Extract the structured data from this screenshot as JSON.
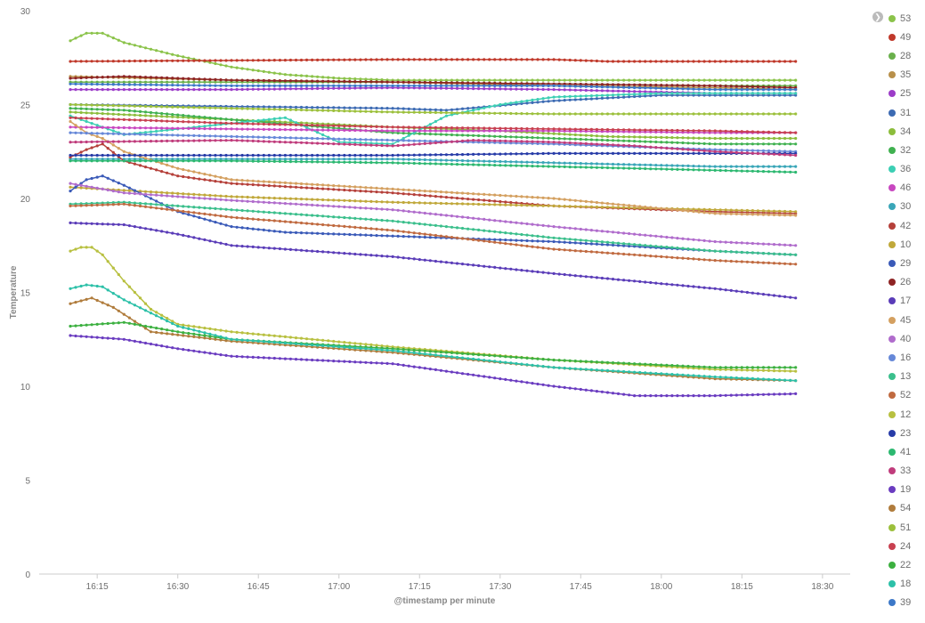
{
  "chart_data": {
    "type": "line",
    "xlabel": "@timestamp per minute",
    "ylabel": "Temperature",
    "ylim": [
      0,
      30
    ],
    "y_ticks": [
      "0",
      "5",
      "10",
      "15",
      "20",
      "25",
      "30"
    ],
    "x_ticks": [
      "16:15",
      "16:30",
      "16:45",
      "17:00",
      "17:15",
      "17:30",
      "17:45",
      "18:00",
      "18:15",
      "18:30"
    ],
    "x_start": "16:10",
    "x_range_minutes": [
      0,
      144
    ],
    "grid": false,
    "legend": "right",
    "series": [
      {
        "name": "53",
        "color": "#8bc34a",
        "points": [
          [
            0,
            28.4
          ],
          [
            3,
            28.8
          ],
          [
            6,
            28.8
          ],
          [
            10,
            28.3
          ],
          [
            20,
            27.6
          ],
          [
            30,
            27.0
          ],
          [
            40,
            26.6
          ],
          [
            50,
            26.4
          ],
          [
            60,
            26.3
          ],
          [
            80,
            26.3
          ],
          [
            100,
            26.3
          ],
          [
            120,
            26.3
          ],
          [
            135,
            26.3
          ]
        ]
      },
      {
        "name": "49",
        "color": "#c0392b",
        "points": [
          [
            0,
            27.3
          ],
          [
            30,
            27.35
          ],
          [
            60,
            27.4
          ],
          [
            90,
            27.4
          ],
          [
            100,
            27.3
          ],
          [
            120,
            27.3
          ],
          [
            135,
            27.3
          ]
        ]
      },
      {
        "name": "28",
        "color": "#6ab04c",
        "points": [
          [
            0,
            26.2
          ],
          [
            30,
            26.2
          ],
          [
            60,
            26.2
          ],
          [
            90,
            26.1
          ],
          [
            120,
            26.0
          ],
          [
            135,
            26.0
          ]
        ]
      },
      {
        "name": "35",
        "color": "#b8904a",
        "points": [
          [
            0,
            26.5
          ],
          [
            30,
            26.3
          ],
          [
            60,
            26.2
          ],
          [
            90,
            26.0
          ],
          [
            120,
            25.9
          ],
          [
            135,
            25.8
          ]
        ]
      },
      {
        "name": "25",
        "color": "#9c3cc8",
        "points": [
          [
            0,
            25.8
          ],
          [
            30,
            25.8
          ],
          [
            60,
            25.9
          ],
          [
            90,
            25.8
          ],
          [
            120,
            25.6
          ],
          [
            135,
            25.6
          ]
        ]
      },
      {
        "name": "31",
        "color": "#3d6bb3",
        "points": [
          [
            0,
            25.0
          ],
          [
            30,
            24.9
          ],
          [
            60,
            24.8
          ],
          [
            70,
            24.7
          ],
          [
            90,
            25.2
          ],
          [
            110,
            25.5
          ],
          [
            135,
            25.5
          ]
        ]
      },
      {
        "name": "34",
        "color": "#8cbd3c",
        "points": [
          [
            0,
            24.6
          ],
          [
            30,
            24.2
          ],
          [
            60,
            23.8
          ],
          [
            80,
            23.6
          ],
          [
            100,
            23.3
          ],
          [
            120,
            23.2
          ],
          [
            135,
            23.2
          ]
        ]
      },
      {
        "name": "32",
        "color": "#40b150",
        "points": [
          [
            0,
            24.8
          ],
          [
            10,
            24.7
          ],
          [
            30,
            24.2
          ],
          [
            60,
            23.5
          ],
          [
            90,
            23.2
          ],
          [
            120,
            22.9
          ],
          [
            135,
            22.9
          ]
        ]
      },
      {
        "name": "36",
        "color": "#3ccfb4",
        "points": [
          [
            0,
            24.4
          ],
          [
            10,
            23.4
          ],
          [
            20,
            23.7
          ],
          [
            30,
            24.0
          ],
          [
            40,
            24.3
          ],
          [
            50,
            23.0
          ],
          [
            60,
            22.9
          ],
          [
            70,
            24.4
          ],
          [
            80,
            25.0
          ],
          [
            90,
            25.4
          ],
          [
            110,
            25.6
          ],
          [
            135,
            25.6
          ]
        ]
      },
      {
        "name": "46",
        "color": "#c847c0",
        "points": [
          [
            0,
            23.8
          ],
          [
            30,
            23.7
          ],
          [
            60,
            23.6
          ],
          [
            90,
            23.6
          ],
          [
            120,
            23.5
          ],
          [
            135,
            23.5
          ]
        ]
      },
      {
        "name": "30",
        "color": "#3aa6b8",
        "points": [
          [
            0,
            22.1
          ],
          [
            30,
            22.1
          ],
          [
            60,
            22.1
          ],
          [
            90,
            21.9
          ],
          [
            120,
            21.7
          ],
          [
            135,
            21.7
          ]
        ]
      },
      {
        "name": "42",
        "color": "#b5403a",
        "points": [
          [
            0,
            22.2
          ],
          [
            3,
            22.6
          ],
          [
            6,
            22.9
          ],
          [
            10,
            22.0
          ],
          [
            20,
            21.2
          ],
          [
            30,
            20.8
          ],
          [
            60,
            20.3
          ],
          [
            90,
            19.6
          ],
          [
            120,
            19.3
          ],
          [
            135,
            19.2
          ]
        ]
      },
      {
        "name": "10",
        "color": "#c0a83a",
        "points": [
          [
            0,
            20.6
          ],
          [
            30,
            20.1
          ],
          [
            60,
            19.8
          ],
          [
            90,
            19.6
          ],
          [
            120,
            19.4
          ],
          [
            135,
            19.3
          ]
        ]
      },
      {
        "name": "29",
        "color": "#3a5ab8",
        "points": [
          [
            0,
            20.4
          ],
          [
            3,
            21.0
          ],
          [
            6,
            21.2
          ],
          [
            10,
            20.7
          ],
          [
            20,
            19.3
          ],
          [
            30,
            18.5
          ],
          [
            40,
            18.2
          ],
          [
            60,
            18.0
          ],
          [
            90,
            17.7
          ],
          [
            120,
            17.2
          ],
          [
            135,
            17.0
          ]
        ]
      },
      {
        "name": "26",
        "color": "#8e2424",
        "points": [
          [
            0,
            26.4
          ],
          [
            10,
            26.5
          ],
          [
            30,
            26.3
          ],
          [
            60,
            26.2
          ],
          [
            90,
            26.1
          ],
          [
            120,
            26.0
          ],
          [
            135,
            25.9
          ]
        ]
      },
      {
        "name": "17",
        "color": "#5a3cb8",
        "points": [
          [
            0,
            18.7
          ],
          [
            10,
            18.6
          ],
          [
            20,
            18.1
          ],
          [
            30,
            17.5
          ],
          [
            60,
            16.9
          ],
          [
            90,
            16.0
          ],
          [
            120,
            15.2
          ],
          [
            135,
            14.7
          ]
        ]
      },
      {
        "name": "45",
        "color": "#d4a060",
        "points": [
          [
            0,
            24.1
          ],
          [
            3,
            23.5
          ],
          [
            6,
            23.2
          ],
          [
            10,
            22.5
          ],
          [
            20,
            21.6
          ],
          [
            30,
            21.0
          ],
          [
            60,
            20.5
          ],
          [
            90,
            20.0
          ],
          [
            120,
            19.2
          ],
          [
            135,
            19.1
          ]
        ]
      },
      {
        "name": "40",
        "color": "#b06ccc",
        "points": [
          [
            0,
            20.8
          ],
          [
            10,
            20.3
          ],
          [
            30,
            19.9
          ],
          [
            60,
            19.4
          ],
          [
            90,
            18.5
          ],
          [
            120,
            17.7
          ],
          [
            135,
            17.5
          ]
        ]
      },
      {
        "name": "16",
        "color": "#6688d8",
        "points": [
          [
            0,
            23.5
          ],
          [
            30,
            23.3
          ],
          [
            60,
            23.1
          ],
          [
            90,
            22.9
          ],
          [
            120,
            22.6
          ],
          [
            135,
            22.5
          ]
        ]
      },
      {
        "name": "13",
        "color": "#3bbf8c",
        "points": [
          [
            0,
            19.7
          ],
          [
            10,
            19.8
          ],
          [
            30,
            19.4
          ],
          [
            60,
            18.8
          ],
          [
            90,
            17.9
          ],
          [
            120,
            17.2
          ],
          [
            135,
            17.0
          ]
        ]
      },
      {
        "name": "52",
        "color": "#c06a40",
        "points": [
          [
            0,
            19.6
          ],
          [
            10,
            19.7
          ],
          [
            30,
            19.0
          ],
          [
            60,
            18.3
          ],
          [
            90,
            17.3
          ],
          [
            120,
            16.7
          ],
          [
            135,
            16.5
          ]
        ]
      },
      {
        "name": "12",
        "color": "#b8c040",
        "points": [
          [
            0,
            17.2
          ],
          [
            2,
            17.4
          ],
          [
            4,
            17.4
          ],
          [
            6,
            17.0
          ],
          [
            10,
            15.6
          ],
          [
            15,
            14.1
          ],
          [
            20,
            13.3
          ],
          [
            30,
            12.9
          ],
          [
            60,
            12.1
          ],
          [
            90,
            11.4
          ],
          [
            120,
            10.9
          ],
          [
            135,
            10.8
          ]
        ]
      },
      {
        "name": "23",
        "color": "#283ca8",
        "points": [
          [
            0,
            22.3
          ],
          [
            30,
            22.3
          ],
          [
            60,
            22.3
          ],
          [
            90,
            22.4
          ],
          [
            120,
            22.4
          ],
          [
            135,
            22.4
          ]
        ]
      },
      {
        "name": "41",
        "color": "#2cb870",
        "points": [
          [
            0,
            22.0
          ],
          [
            30,
            22.0
          ],
          [
            60,
            21.9
          ],
          [
            90,
            21.7
          ],
          [
            120,
            21.5
          ],
          [
            135,
            21.4
          ]
        ]
      },
      {
        "name": "33",
        "color": "#c03c7c",
        "points": [
          [
            0,
            23.0
          ],
          [
            30,
            23.1
          ],
          [
            60,
            22.8
          ],
          [
            75,
            23.1
          ],
          [
            90,
            23.0
          ],
          [
            105,
            22.8
          ],
          [
            120,
            22.5
          ],
          [
            135,
            22.3
          ]
        ]
      },
      {
        "name": "19",
        "color": "#6a3cc0",
        "points": [
          [
            0,
            12.7
          ],
          [
            10,
            12.5
          ],
          [
            20,
            12.0
          ],
          [
            30,
            11.6
          ],
          [
            60,
            11.2
          ],
          [
            90,
            10.0
          ],
          [
            105,
            9.5
          ],
          [
            120,
            9.5
          ],
          [
            135,
            9.6
          ]
        ]
      },
      {
        "name": "54",
        "color": "#b07c3c",
        "points": [
          [
            0,
            14.4
          ],
          [
            4,
            14.7
          ],
          [
            8,
            14.2
          ],
          [
            15,
            12.9
          ],
          [
            30,
            12.4
          ],
          [
            60,
            11.8
          ],
          [
            90,
            11.0
          ],
          [
            120,
            10.4
          ],
          [
            135,
            10.3
          ]
        ]
      },
      {
        "name": "51",
        "color": "#9cc03c",
        "points": [
          [
            0,
            25.0
          ],
          [
            30,
            24.8
          ],
          [
            60,
            24.6
          ],
          [
            90,
            24.5
          ],
          [
            120,
            24.5
          ],
          [
            135,
            24.5
          ]
        ]
      },
      {
        "name": "24",
        "color": "#c84050",
        "points": [
          [
            0,
            24.3
          ],
          [
            30,
            24.0
          ],
          [
            60,
            23.8
          ],
          [
            90,
            23.7
          ],
          [
            120,
            23.6
          ],
          [
            135,
            23.5
          ]
        ]
      },
      {
        "name": "22",
        "color": "#3cb040",
        "points": [
          [
            0,
            13.2
          ],
          [
            10,
            13.4
          ],
          [
            20,
            12.9
          ],
          [
            30,
            12.5
          ],
          [
            60,
            12.0
          ],
          [
            90,
            11.4
          ],
          [
            120,
            11.0
          ],
          [
            135,
            11.0
          ]
        ]
      },
      {
        "name": "18",
        "color": "#2cc0a8",
        "points": [
          [
            0,
            15.2
          ],
          [
            3,
            15.4
          ],
          [
            6,
            15.3
          ],
          [
            10,
            14.6
          ],
          [
            20,
            13.2
          ],
          [
            30,
            12.5
          ],
          [
            60,
            11.9
          ],
          [
            90,
            11.0
          ],
          [
            120,
            10.5
          ],
          [
            135,
            10.3
          ]
        ]
      },
      {
        "name": "39",
        "color": "#3c78c8",
        "points": [
          [
            0,
            26.1
          ],
          [
            30,
            26.0
          ],
          [
            60,
            26.0
          ],
          [
            90,
            26.0
          ],
          [
            120,
            25.8
          ],
          [
            135,
            25.8
          ]
        ]
      }
    ]
  }
}
